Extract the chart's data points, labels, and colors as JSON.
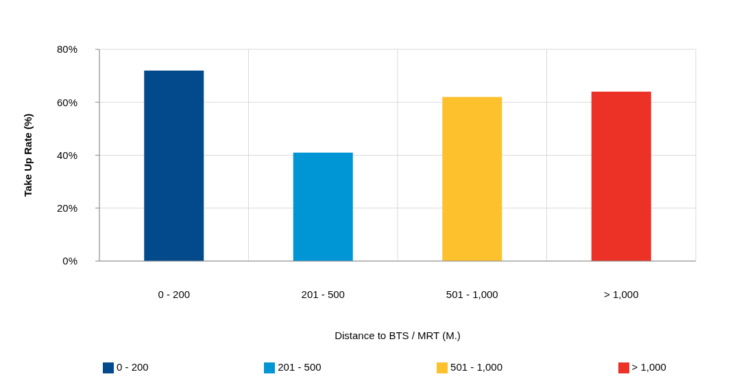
{
  "chart_data": {
    "type": "bar",
    "categories": [
      "0 - 200",
      "201 - 500",
      "501 - 1,000",
      "> 1,000"
    ],
    "series": [
      {
        "name": "0 - 200",
        "color": "#034a8c",
        "values": [
          72,
          null,
          null,
          null
        ]
      },
      {
        "name": "201 - 500",
        "color": "#0096d6",
        "values": [
          null,
          41,
          null,
          null
        ]
      },
      {
        "name": "501 - 1,000",
        "color": "#fcc12c",
        "values": [
          null,
          null,
          62,
          null
        ]
      },
      {
        "name": "> 1,000",
        "color": "#ec3126",
        "values": [
          null,
          null,
          null,
          64
        ]
      }
    ],
    "xlabel": "Distance to BTS / MRT (M.)",
    "ylabel": "Take Up Rate (%)",
    "ylim": [
      0,
      80
    ],
    "yticks": [
      {
        "value": 0,
        "label": "0%"
      },
      {
        "value": 20,
        "label": "20%"
      },
      {
        "value": 40,
        "label": "40%"
      },
      {
        "value": 60,
        "label": "60%"
      },
      {
        "value": 80,
        "label": "80%"
      }
    ],
    "grid": true,
    "legend": "bottom"
  }
}
